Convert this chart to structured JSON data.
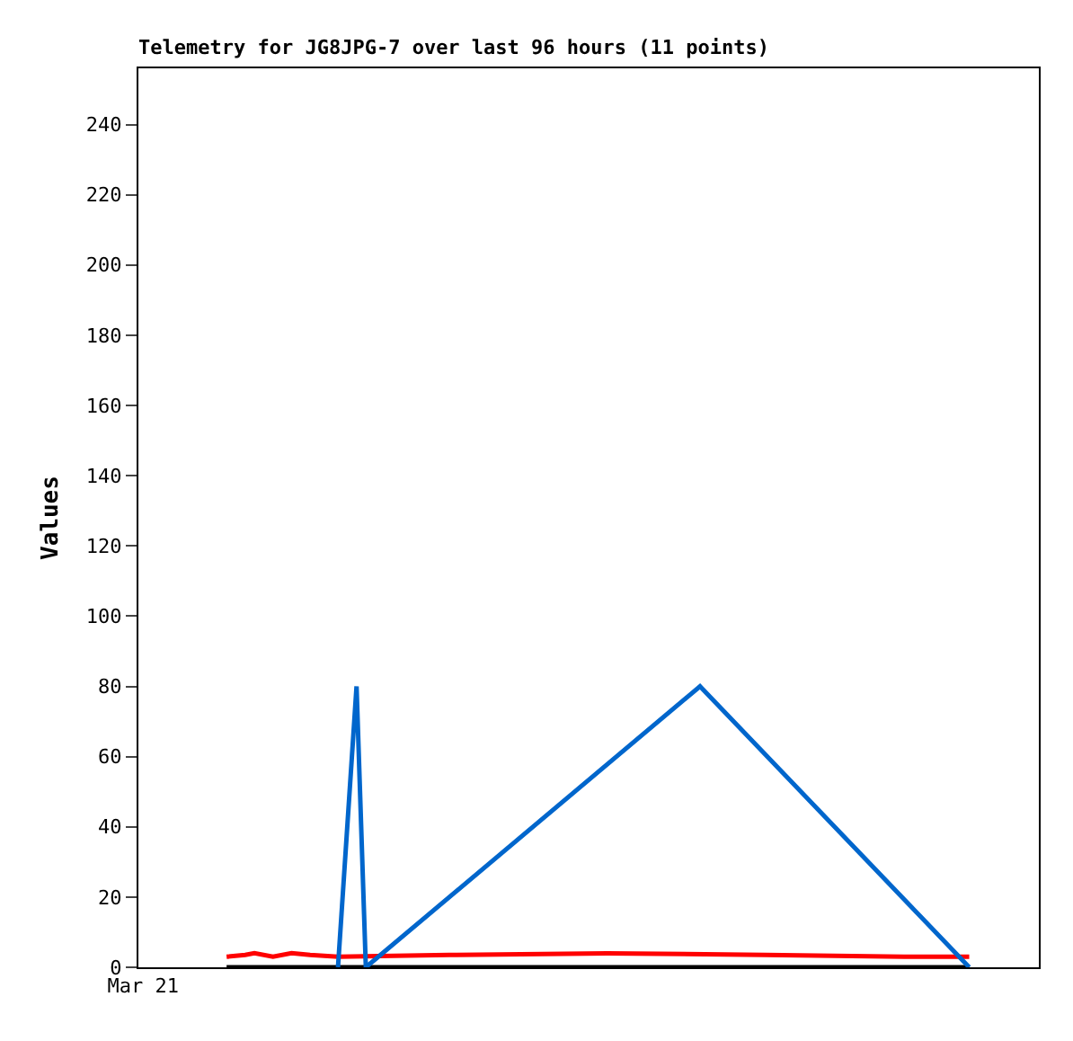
{
  "chart_data": {
    "type": "line",
    "title": "Telemetry for JG8JPG-7 over last 96 hours (11 points)",
    "ylabel": "Values",
    "categories": [
      "Mar 21",
      null,
      null,
      null,
      null,
      null,
      null,
      null,
      null,
      null,
      null,
      null,
      null,
      null,
      null,
      null,
      null,
      null,
      null,
      null,
      null,
      null,
      null,
      null,
      null,
      null,
      null,
      null,
      null,
      null,
      null,
      null,
      null,
      null,
      null,
      null,
      null,
      null,
      null,
      null,
      null,
      null,
      null,
      null,
      null,
      null,
      null,
      null,
      null,
      null,
      null,
      null,
      null,
      null,
      null,
      null,
      null,
      null,
      null,
      null,
      null,
      null,
      null,
      null,
      null,
      null,
      null,
      null,
      null,
      null,
      null,
      null,
      null,
      null,
      null,
      null,
      null,
      null,
      null,
      null,
      null,
      null,
      null,
      null,
      null,
      null,
      null,
      null,
      null,
      null,
      null,
      null,
      null,
      null,
      null,
      null,
      null
    ],
    "ylim": [
      0,
      256
    ],
    "yticks": [
      0,
      20,
      40,
      60,
      80,
      100,
      120,
      140,
      160,
      180,
      200,
      220,
      240
    ],
    "series": [
      {
        "color": "#000000",
        "values": [
          null,
          null,
          null,
          null,
          null,
          null,
          null,
          null,
          null,
          0,
          null,
          null,
          null,
          null,
          null,
          null,
          null,
          null,
          null,
          null,
          null,
          null,
          null,
          null,
          null,
          null,
          null,
          null,
          null,
          null,
          null,
          null,
          null,
          null,
          null,
          null,
          null,
          null,
          null,
          null,
          null,
          null,
          null,
          null,
          null,
          null,
          null,
          null,
          null,
          null,
          null,
          null,
          null,
          null,
          null,
          null,
          null,
          null,
          null,
          null,
          null,
          null,
          null,
          null,
          null,
          null,
          null,
          null,
          null,
          null,
          null,
          null,
          null,
          null,
          null,
          null,
          null,
          null,
          null,
          null,
          null,
          null,
          null,
          null,
          null,
          null,
          null,
          null,
          null,
          0,
          null,
          null,
          null,
          null,
          null,
          null,
          null
        ]
      },
      {
        "color": "#ff0000",
        "values": [
          null,
          null,
          null,
          null,
          null,
          null,
          null,
          null,
          null,
          3,
          null,
          3.5,
          4,
          null,
          3,
          null,
          4,
          null,
          3.5,
          null,
          null,
          3,
          null,
          null,
          null,
          null,
          null,
          null,
          null,
          null,
          null,
          null,
          null,
          3.5,
          null,
          null,
          null,
          null,
          null,
          null,
          null,
          null,
          null,
          null,
          null,
          null,
          null,
          null,
          null,
          null,
          4,
          null,
          null,
          null,
          null,
          null,
          null,
          null,
          null,
          null,
          null,
          null,
          null,
          null,
          null,
          null,
          null,
          3.5,
          null,
          null,
          null,
          null,
          null,
          null,
          null,
          null,
          null,
          null,
          null,
          null,
          null,
          null,
          3,
          null,
          null,
          null,
          null,
          null,
          null,
          3,
          null,
          null,
          null,
          null,
          null,
          null,
          null
        ]
      },
      {
        "color": "#0066cc",
        "values": [
          null,
          null,
          null,
          null,
          null,
          null,
          null,
          null,
          null,
          null,
          null,
          null,
          null,
          null,
          null,
          null,
          null,
          null,
          null,
          null,
          null,
          0,
          null,
          80,
          0,
          null,
          null,
          null,
          null,
          null,
          null,
          null,
          null,
          null,
          null,
          null,
          null,
          null,
          null,
          null,
          null,
          null,
          null,
          null,
          null,
          null,
          null,
          null,
          null,
          null,
          null,
          null,
          null,
          null,
          null,
          null,
          null,
          null,
          null,
          null,
          80,
          null,
          null,
          null,
          null,
          null,
          null,
          null,
          null,
          null,
          null,
          null,
          null,
          null,
          null,
          null,
          null,
          null,
          null,
          null,
          null,
          null,
          null,
          null,
          null,
          null,
          null,
          null,
          null,
          0,
          null,
          null,
          null,
          null,
          null,
          null,
          null
        ]
      }
    ]
  }
}
